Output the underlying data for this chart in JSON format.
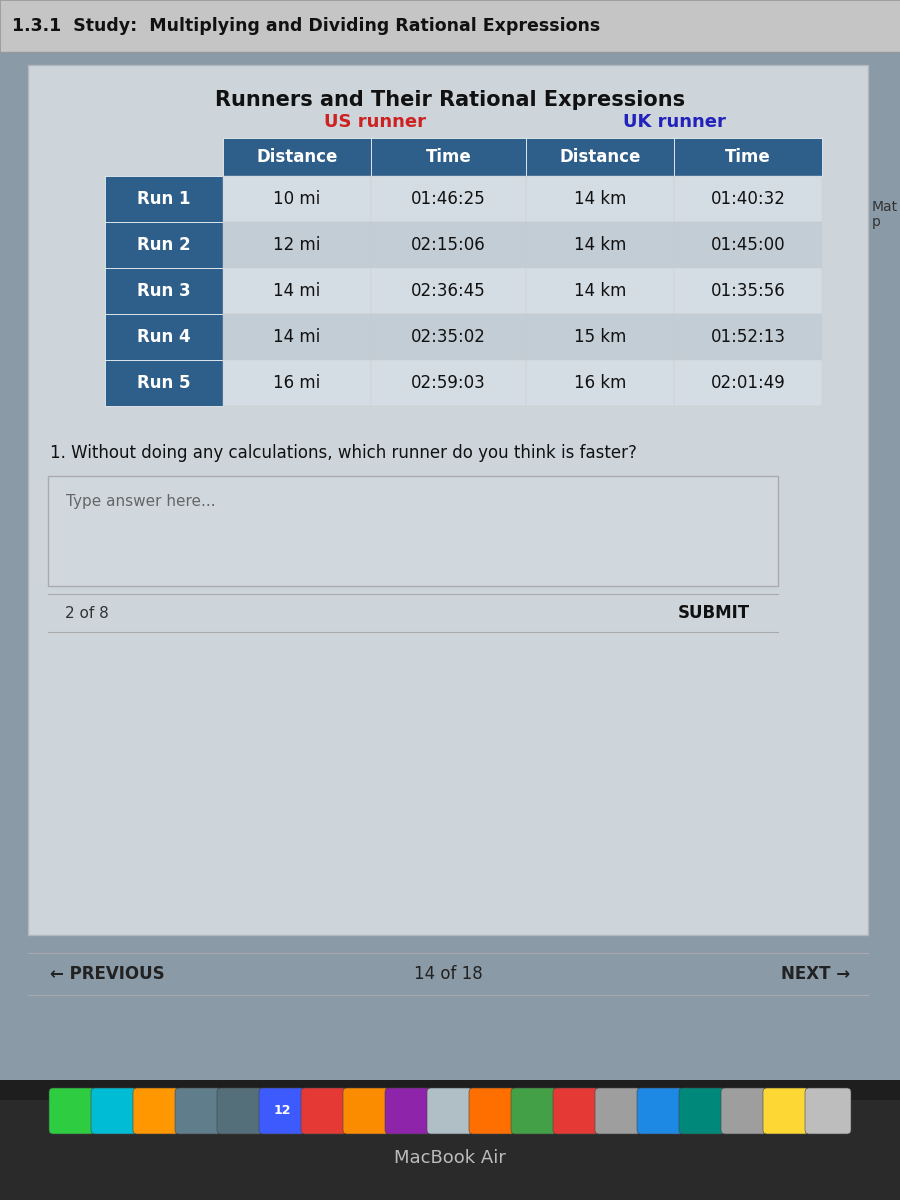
{
  "page_title": "1.3.1  Study:  Multiplying and Dividing Rational Expressions",
  "table_title": "Runners and Their Rational Expressions",
  "us_runner_label": "US runner",
  "uk_runner_label": "UK runner",
  "col_headers": [
    "Distance",
    "Time",
    "Distance",
    "Time"
  ],
  "row_labels": [
    "Run 1",
    "Run 2",
    "Run 3",
    "Run 4",
    "Run 5"
  ],
  "us_distance": [
    "10 mi",
    "12 mi",
    "14 mi",
    "14 mi",
    "16 mi"
  ],
  "us_time": [
    "01:46:25",
    "02:15:06",
    "02:36:45",
    "02:35:02",
    "02:59:03"
  ],
  "uk_distance": [
    "14 km",
    "14 km",
    "14 km",
    "15 km",
    "16 km"
  ],
  "uk_time": [
    "01:40:32",
    "01:45:00",
    "01:35:56",
    "01:52:13",
    "02:01:49"
  ],
  "question": "1. Without doing any calculations, which runner do you think is faster?",
  "answer_placeholder": "Type answer here...",
  "page_indicator": "2 of 8",
  "submit_btn": "SUBMIT",
  "nav_prev": "← PREVIOUS",
  "nav_page": "14 of 18",
  "nav_next": "NEXT →",
  "mat_label": "Mat",
  "bg_outer": "#8a9aa6",
  "bg_top_bar": "#c5c5c5",
  "bg_content": "#cdd5db",
  "bg_header_row": "#2e5f8a",
  "bg_row_label": "#2e5f8a",
  "bg_row_even": "#d4dde4",
  "bg_row_odd": "#c2cdd5",
  "text_header": "#ffffff",
  "text_row_label": "#ffffff",
  "text_body": "#111111",
  "color_us": "#cc2222",
  "color_uk": "#2222bb",
  "color_title": "#111111",
  "color_page_title": "#111111",
  "dock_bg": "#1e1e1e",
  "macbook_bg": "#2a2a2a",
  "macbook_text": "#bbbbbb",
  "nav_text_color": "#222222",
  "answer_box_bg": "#d0d8de",
  "answer_box_border": "#aaaaaa",
  "submit_text": "#111111",
  "page_ind_text": "#333333"
}
